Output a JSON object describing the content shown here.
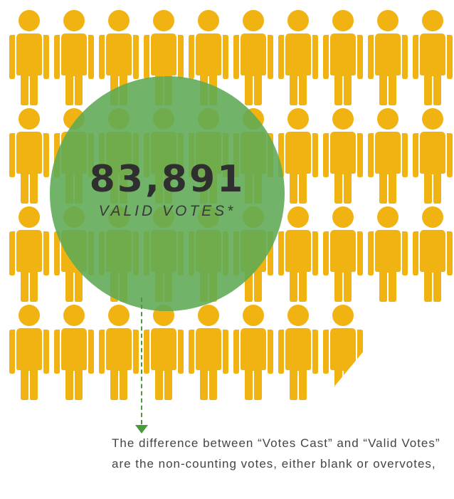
{
  "stat": {
    "number": "83,891",
    "label": "VALID VOTES*"
  },
  "footnote": {
    "text": "The difference between “Votes Cast” and “Valid Votes” are the non-counting votes, either blank or overvotes,"
  },
  "pictogram": {
    "icon": "person-icon",
    "full_icons": 37,
    "partial_icon_fraction": 0.5
  },
  "colors": {
    "person": "#F1B311",
    "circle": "#5DAA54",
    "arrow": "#4A9A3C",
    "number_text": "#2F2F2F",
    "note_text": "#444444"
  }
}
